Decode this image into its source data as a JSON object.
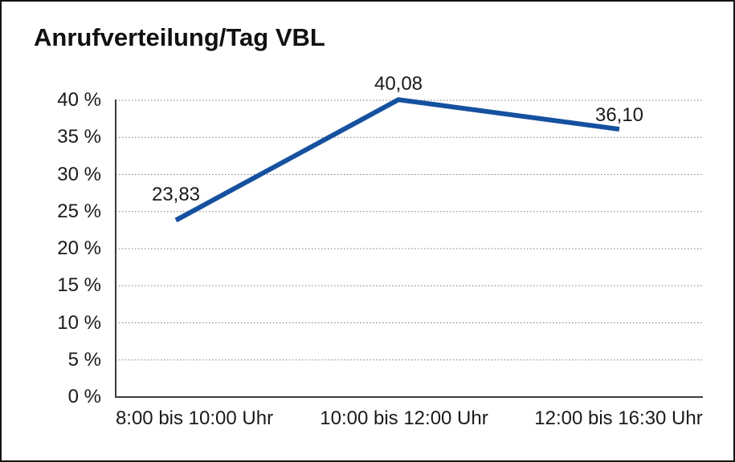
{
  "window": {
    "background_color": "#ffffff",
    "border_color": "#141414"
  },
  "chart_data": {
    "type": "line",
    "title": "Anrufverteilung/Tag VBL",
    "categories": [
      "8:00 bis 10:00 Uhr",
      "10:00 bis 12:00 Uhr",
      "12:00 bis 16:30 Uhr"
    ],
    "values": [
      23.83,
      40.08,
      36.1
    ],
    "data_labels": [
      "23,83",
      "40,08",
      "36,10"
    ],
    "xlabel": "",
    "ylabel": "",
    "ylim": [
      0,
      40
    ],
    "y_tick_values": [
      0,
      5,
      10,
      15,
      20,
      25,
      30,
      35,
      40
    ],
    "y_tick_suffix": " %",
    "grid": "horizontal-dotted",
    "legend": "none",
    "line_color": "#15519F",
    "grid_color": "#7a7a7a",
    "axis_color": "#3c3c3c",
    "text_color": "#1a1a1a"
  }
}
